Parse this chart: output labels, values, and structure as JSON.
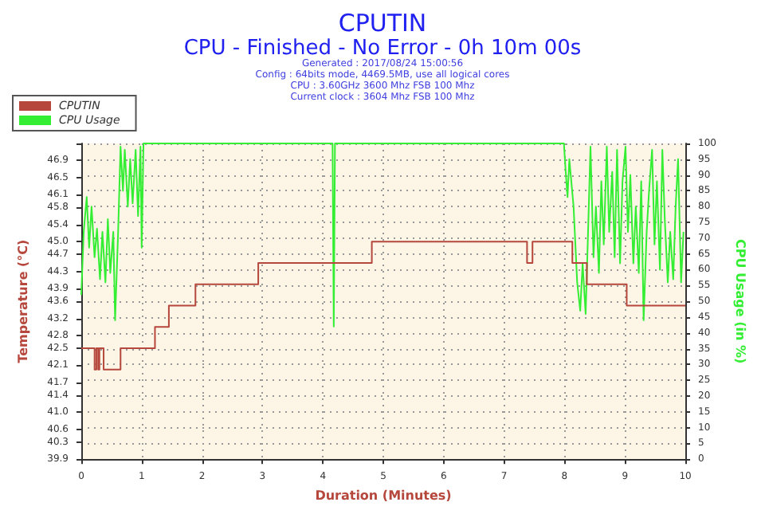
{
  "chart_data": {
    "type": "line",
    "title": "CPUTIN",
    "subtitle": "CPU - Finished - No Error - 0h 10m 00s",
    "annotations": [
      "Generated : 2017/08/24 15:00:56",
      "Config : 64bits mode, 4469.5MB, use all logical cores",
      "CPU : 3.60GHz 3600 Mhz FSB 100 Mhz",
      "Current clock : 3604 Mhz FSB 100 Mhz"
    ],
    "xlabel": "Duration (Minutes)",
    "ylabel": "Temperature (°C)",
    "y2label": "CPU Usage (in %)",
    "xlim": [
      0,
      10
    ],
    "xticks": [
      0,
      1,
      2,
      3,
      4,
      5,
      6,
      7,
      8,
      9,
      10
    ],
    "ylim": [
      39.9,
      47.3
    ],
    "yticks": [
      39.9,
      40.3,
      40.6,
      {
        "value": 41.0,
        "label": "41.0"
      },
      41.4,
      41.7,
      42.1,
      42.5,
      42.8,
      43.2,
      43.6,
      43.9,
      44.3,
      44.7,
      {
        "value": 45.0,
        "label": "45.0"
      },
      45.4,
      45.8,
      46.1,
      46.5,
      46.9,
      {
        "value": 47.3,
        "label": null
      }
    ],
    "y2lim": [
      0,
      100
    ],
    "y2ticks": [
      0,
      5,
      10,
      15,
      20,
      25,
      30,
      35,
      40,
      45,
      50,
      55,
      60,
      65,
      70,
      75,
      80,
      85,
      90,
      95,
      100
    ],
    "grid": true,
    "legend": "top left",
    "marker": "none",
    "series": [
      {
        "name": "CPUTIN",
        "type": "step",
        "color": "#b5473c",
        "x": [
          0,
          0.2,
          0.22,
          0.25,
          0.28,
          0.3,
          0.37,
          0.65,
          1.22,
          1.45,
          1.89,
          2.93,
          4.81,
          7.38,
          7.47,
          8.13,
          8.37,
          9.03,
          10
        ],
        "values": [
          42.5,
          42.5,
          42.0,
          42.5,
          42.0,
          42.5,
          42.0,
          42.5,
          43.0,
          43.5,
          44.0,
          44.5,
          45.0,
          44.5,
          45.0,
          44.5,
          44.0,
          43.5,
          43.5
        ]
      },
      {
        "name": "CPU Usage",
        "axis": "y2",
        "color": "#33ee33",
        "x": [
          0,
          0.04,
          0.09,
          0.13,
          0.17,
          0.22,
          0.26,
          0.31,
          0.35,
          0.4,
          0.44,
          0.48,
          0.53,
          0.56,
          0.61,
          0.65,
          0.69,
          0.72,
          0.77,
          0.81,
          0.85,
          0.9,
          0.94,
          0.98,
          1.0,
          1.03,
          4.16,
          4.18,
          4.2,
          7.99,
          8.02,
          8.05,
          8.08,
          8.15,
          8.21,
          8.26,
          8.3,
          8.35,
          8.39,
          8.43,
          8.48,
          8.52,
          8.57,
          8.61,
          8.65,
          8.7,
          8.74,
          8.79,
          8.83,
          8.87,
          8.92,
          8.96,
          9.01,
          9.05,
          9.09,
          9.14,
          9.18,
          9.23,
          9.27,
          9.31,
          9.36,
          9.4,
          9.45,
          9.49,
          9.53,
          9.58,
          9.62,
          9.66,
          9.71,
          9.75,
          9.8,
          9.84,
          9.88,
          9.93,
          9.97
        ],
        "values": [
          52,
          72,
          83,
          67,
          80,
          64,
          73,
          57,
          72,
          56,
          76,
          59,
          72,
          44,
          72,
          99,
          85,
          98,
          80,
          95,
          81,
          98,
          77,
          99,
          67,
          100,
          100,
          42,
          100,
          100,
          91,
          83,
          95,
          80,
          56,
          47,
          62,
          46,
          72,
          99,
          64,
          80,
          59,
          88,
          68,
          99,
          72,
          91,
          64,
          98,
          62,
          88,
          99,
          72,
          90,
          62,
          80,
          59,
          88,
          44,
          72,
          85,
          98,
          68,
          88,
          60,
          98,
          76,
          56,
          72,
          57,
          80,
          95,
          56,
          72
        ]
      }
    ]
  }
}
